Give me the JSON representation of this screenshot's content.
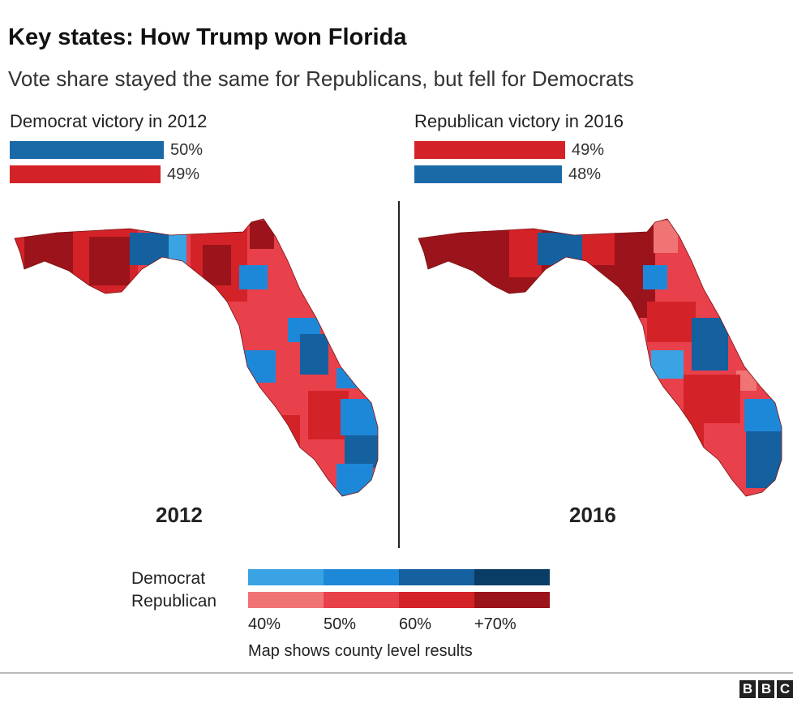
{
  "title": "Key states: How Trump won Florida",
  "subtitle": "Vote share stayed the same for Republicans, but fell for Democrats",
  "colors": {
    "dem": [
      "#3aa3e3",
      "#1e88d8",
      "#15609e",
      "#0a3d66"
    ],
    "rep": [
      "#f07474",
      "#e8414b",
      "#d42328",
      "#9b141b"
    ]
  },
  "panels": [
    {
      "heading": "Democrat victory in 2012",
      "year": "2012",
      "bars": [
        {
          "party": "Democrat",
          "value": 50,
          "label": "50%",
          "color": "#1b6aa8"
        },
        {
          "party": "Republican",
          "value": 49,
          "label": "49%",
          "color": "#d42328"
        }
      ]
    },
    {
      "heading": "Republican victory in 2016",
      "year": "2016",
      "bars": [
        {
          "party": "Republican",
          "value": 49,
          "label": "49%",
          "color": "#d42328"
        },
        {
          "party": "Democrat",
          "value": 48,
          "label": "48%",
          "color": "#1b6aa8"
        }
      ]
    }
  ],
  "legend": {
    "dem_label": "Democrat",
    "rep_label": "Republican",
    "ticks": [
      "40%",
      "50%",
      "60%",
      "+70%"
    ],
    "note": "Map shows county level results"
  },
  "footer": {
    "logo_letters": [
      "B",
      "B",
      "C"
    ]
  }
}
